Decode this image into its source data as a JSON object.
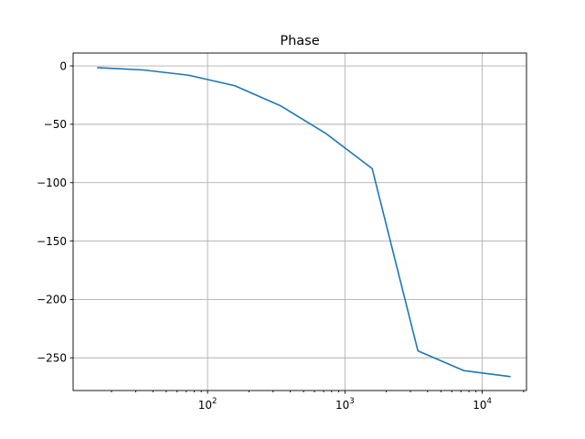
{
  "chart_data": {
    "type": "line",
    "title": "Phase",
    "xlabel": "",
    "ylabel": "",
    "x_scale": "log",
    "grid": true,
    "xlim": [
      10.5,
      21000
    ],
    "ylim": [
      -278,
      11
    ],
    "x_major_ticks": [
      {
        "value": 100,
        "base": "10",
        "exp": "2"
      },
      {
        "value": 1000,
        "base": "10",
        "exp": "3"
      },
      {
        "value": 10000,
        "base": "10",
        "exp": "4"
      }
    ],
    "y_ticks": [
      {
        "value": 0,
        "label": "0"
      },
      {
        "value": -50,
        "label": "−50"
      },
      {
        "value": -100,
        "label": "−100"
      },
      {
        "value": -150,
        "label": "−150"
      },
      {
        "value": -200,
        "label": "−200"
      },
      {
        "value": -250,
        "label": "−250"
      }
    ],
    "series": [
      {
        "color": "#1f77b4",
        "x": [
          15.9,
          34,
          73,
          158,
          338,
          730,
          1580,
          3400,
          7350,
          15900
        ],
        "y": [
          -1.5,
          -3.5,
          -8,
          -17,
          -34,
          -58,
          -88,
          -244,
          -261,
          -266
        ]
      }
    ]
  }
}
